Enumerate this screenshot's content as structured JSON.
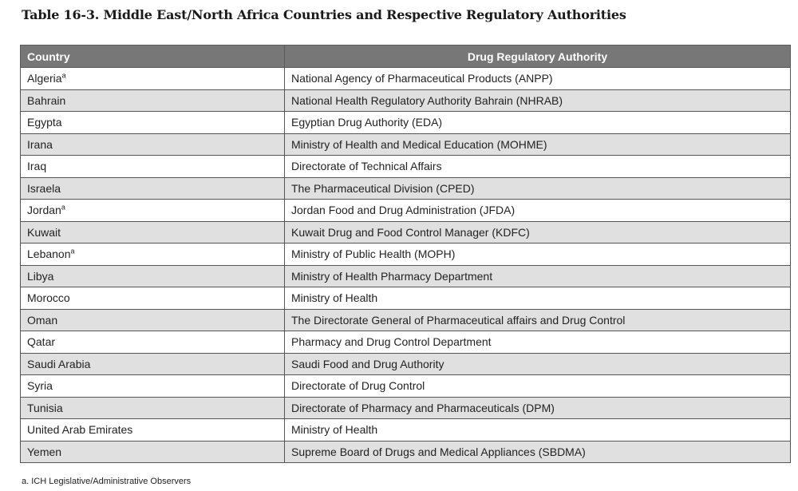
{
  "title": "Table 16-3. Middle East/North Africa Countries and Respective Regulatory Authorities",
  "headers": {
    "country": "Country",
    "authority": "Drug Regulatory Authority"
  },
  "rows": [
    {
      "country": "Algeria",
      "mark": "a",
      "authority": "National Agency of Pharmaceutical Products (ANPP)"
    },
    {
      "country": "Bahrain",
      "mark": "",
      "authority": "National Health Regulatory Authority Bahrain (NHRAB)"
    },
    {
      "country": "Egypta",
      "mark": "",
      "authority": "Egyptian Drug Authority (EDA)"
    },
    {
      "country": "Irana",
      "mark": "",
      "authority": "Ministry of Health and Medical Education (MOHME)"
    },
    {
      "country": "Iraq",
      "mark": "",
      "authority": "Directorate of Technical Affairs"
    },
    {
      "country": "Israela",
      "mark": "",
      "authority": "The Pharmaceutical Division (CPED)"
    },
    {
      "country": "Jordan",
      "mark": "a",
      "authority": "Jordan Food and Drug Administration (JFDA)"
    },
    {
      "country": "Kuwait",
      "mark": "",
      "authority": "Kuwait Drug and Food Control Manager (KDFC)"
    },
    {
      "country": "Lebanon",
      "mark": "a",
      "authority": "Ministry of Public Health (MOPH)"
    },
    {
      "country": "Libya",
      "mark": "",
      "authority": "Ministry of Health Pharmacy Department"
    },
    {
      "country": "Morocco",
      "mark": "",
      "authority": "Ministry of Health"
    },
    {
      "country": "Oman",
      "mark": "",
      "authority": "The Directorate General of Pharmaceutical affairs and Drug Control"
    },
    {
      "country": "Qatar",
      "mark": "",
      "authority": "Pharmacy and Drug Control Department"
    },
    {
      "country": "Saudi Arabia",
      "mark": "",
      "authority": "Saudi Food and Drug Authority"
    },
    {
      "country": "Syria",
      "mark": "",
      "authority": "Directorate of Drug Control"
    },
    {
      "country": "Tunisia",
      "mark": "",
      "authority": "Directorate of Pharmacy and Pharmaceuticals (DPM)"
    },
    {
      "country": "United Arab Emirates",
      "mark": "",
      "authority": "Ministry of Health"
    },
    {
      "country": "Yemen",
      "mark": "",
      "authority": "Supreme Board of Drugs and Medical Appliances (SBDMA)"
    }
  ],
  "footnote": "a.  ICH Legislative/Administrative Observers"
}
